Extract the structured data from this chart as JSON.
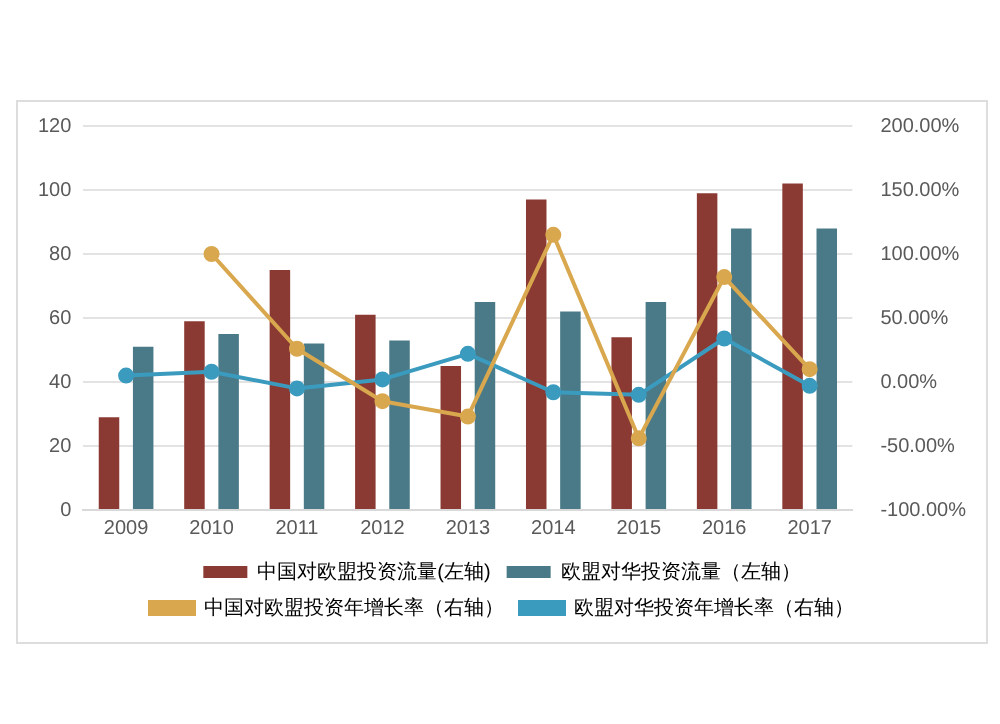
{
  "chart_data": {
    "type": "bar",
    "categories": [
      "2009",
      "2010",
      "2011",
      "2012",
      "2013",
      "2014",
      "2015",
      "2016",
      "2017"
    ],
    "series": [
      {
        "name": "中国对欧盟投资流量(左轴)",
        "color": "#8b3a33",
        "values": [
          29,
          59,
          75,
          61,
          45,
          97,
          54,
          99,
          102
        ]
      },
      {
        "name": "欧盟对华投资流量（左轴）",
        "color": "#4a7a87",
        "values": [
          51,
          55,
          52,
          53,
          65,
          62,
          65,
          88,
          88
        ]
      },
      {
        "name": "中国对欧盟投资年增长率（右轴）",
        "type": "line",
        "axis": "y2",
        "color": "#d9a84e",
        "values": [
          null,
          100,
          26,
          -15,
          -27,
          115,
          -44,
          82,
          10
        ]
      },
      {
        "name": "欧盟对华投资年增长率（右轴）",
        "type": "line",
        "axis": "y2",
        "color": "#3b9bbf",
        "values": [
          5,
          8,
          -5,
          2,
          22,
          -8,
          -10,
          34,
          -3
        ]
      }
    ],
    "ylim": [
      0,
      120
    ],
    "yticks": [
      0,
      20,
      40,
      60,
      80,
      100,
      120
    ],
    "y2lim": [
      -100,
      200
    ],
    "y2ticks": [
      {
        "value": -100,
        "label": "-100.00%"
      },
      {
        "value": -50,
        "label": "-50.00%"
      },
      {
        "value": 0,
        "label": "0.00%"
      },
      {
        "value": 50,
        "label": "50.00%"
      },
      {
        "value": 100,
        "label": "100.00%"
      },
      {
        "value": 150,
        "label": "150.00%"
      },
      {
        "value": 200,
        "label": "200.00%"
      }
    ],
    "grid": "y",
    "legend": "bottom",
    "marker": "circle"
  }
}
